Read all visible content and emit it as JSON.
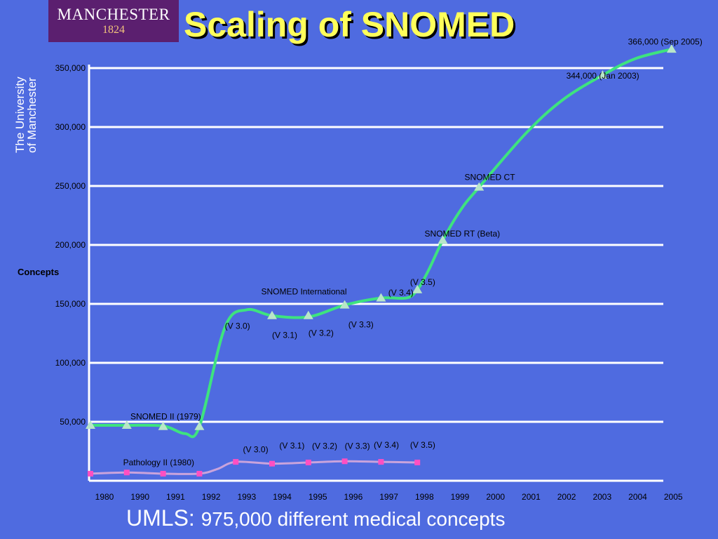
{
  "logo": {
    "name": "MANCHESTER",
    "year": "1824"
  },
  "university": {
    "line1": "The University",
    "line2": "of Manchester"
  },
  "title": "Scaling of SNOMED",
  "footer": {
    "prefix": "UMLS:",
    "text": "975,000 different medical concepts"
  },
  "colors": {
    "background": "#4f6be0",
    "snomed_line": "#3ee37f",
    "snomed_marker": "#b8e6c8",
    "pathology_line": "#c9a3dc",
    "pathology_marker": "#ff4fc2",
    "title": "#ffff5a"
  },
  "chart_data": {
    "type": "line",
    "title": "Scaling of SNOMED",
    "ylabel": "Concepts",
    "xlabel": "",
    "x_ticks": [
      "1980",
      "1990",
      "1991",
      "1992",
      "1993",
      "1994",
      "1995",
      "1996",
      "1997",
      "1998",
      "1999",
      "2000",
      "2001",
      "2002",
      "2003",
      "2004",
      "2005"
    ],
    "y_ticks": [
      "50,000",
      "100,000",
      "150,000",
      "200,000",
      "250,000",
      "300,000",
      "350,000"
    ],
    "y_tick_values": [
      50000,
      100000,
      150000,
      200000,
      250000,
      300000,
      350000
    ],
    "ylim": [
      0,
      355000
    ],
    "grid": true,
    "series": [
      {
        "name": "SNOMED",
        "marker": "triangle",
        "points": [
          {
            "x": 0,
            "y": 47000
          },
          {
            "x": 1,
            "y": 47000
          },
          {
            "x": 2,
            "y": 46000
          },
          {
            "x": 3,
            "y": 46000
          },
          {
            "x": 5,
            "y": 140000
          },
          {
            "x": 6,
            "y": 140000
          },
          {
            "x": 7,
            "y": 149000
          },
          {
            "x": 8,
            "y": 155000
          },
          {
            "x": 9,
            "y": 162000
          },
          {
            "x": 9.7,
            "y": 204000
          },
          {
            "x": 10.7,
            "y": 249000
          },
          {
            "x": 14.1,
            "y": 344000
          },
          {
            "x": 16,
            "y": 366000
          }
        ],
        "curve": [
          [
            0,
            47000
          ],
          [
            1,
            47000
          ],
          [
            2,
            46500
          ],
          [
            2.6,
            40000
          ],
          [
            3,
            46000
          ],
          [
            3.7,
            130000
          ],
          [
            4.3,
            145000
          ],
          [
            5,
            140000
          ],
          [
            6,
            139000
          ],
          [
            7,
            149000
          ],
          [
            8,
            155000
          ],
          [
            8.7,
            155000
          ],
          [
            9,
            162000
          ],
          [
            9.3,
            178000
          ],
          [
            9.7,
            204000
          ],
          [
            10.2,
            230000
          ],
          [
            10.7,
            249000
          ],
          [
            12,
            295000
          ],
          [
            13,
            323000
          ],
          [
            14.1,
            344000
          ],
          [
            15,
            358000
          ],
          [
            16,
            366000
          ]
        ]
      },
      {
        "name": "Pathology",
        "marker": "square",
        "points": [
          {
            "x": 0,
            "y": 6000
          },
          {
            "x": 1,
            "y": 7000
          },
          {
            "x": 2,
            "y": 6000
          },
          {
            "x": 3,
            "y": 6000
          },
          {
            "x": 4,
            "y": 16000
          },
          {
            "x": 5,
            "y": 14500
          },
          {
            "x": 6,
            "y": 15500
          },
          {
            "x": 7,
            "y": 16500
          },
          {
            "x": 8,
            "y": 16000
          },
          {
            "x": 9,
            "y": 15500
          }
        ],
        "curve": [
          [
            0,
            6000
          ],
          [
            1,
            7000
          ],
          [
            2,
            6000
          ],
          [
            3,
            6000
          ],
          [
            3.5,
            10000
          ],
          [
            4,
            16000
          ],
          [
            5,
            14500
          ],
          [
            6,
            15500
          ],
          [
            7,
            16500
          ],
          [
            8,
            16000
          ],
          [
            9,
            15500
          ]
        ]
      }
    ],
    "annotations": [
      {
        "text": "366,000 (Sep 2005)",
        "x": 14.8,
        "y": 370000
      },
      {
        "text": "344,000 (Jan 2003)",
        "x": 13.1,
        "y": 341000
      },
      {
        "text": "SNOMED CT",
        "x": 10.3,
        "y": 255000
      },
      {
        "text": "SNOMED RT (Beta)",
        "x": 9.2,
        "y": 207000
      },
      {
        "text": "(V 3.5)",
        "x": 8.8,
        "y": 166000
      },
      {
        "text": "(V 3.4)",
        "x": 8.2,
        "y": 157000
      },
      {
        "text": "SNOMED International",
        "x": 4.7,
        "y": 158000
      },
      {
        "text": "(V 3.0)",
        "x": 3.7,
        "y": 129000
      },
      {
        "text": "(V 3.1)",
        "x": 5.0,
        "y": 121000
      },
      {
        "text": "(V 3.2)",
        "x": 6.0,
        "y": 123000
      },
      {
        "text": "(V 3.3)",
        "x": 7.1,
        "y": 130000
      },
      {
        "text": "SNOMED II (1979)",
        "x": 1.1,
        "y": 52000
      },
      {
        "text": "(V 3.0)",
        "x": 4.2,
        "y": 24000
      },
      {
        "text": "(V 3.1)",
        "x": 5.2,
        "y": 27500
      },
      {
        "text": "(V 3.2)",
        "x": 6.1,
        "y": 27000
      },
      {
        "text": "(V 3.3)",
        "x": 7.0,
        "y": 27000
      },
      {
        "text": "(V 3.4)",
        "x": 7.8,
        "y": 28000
      },
      {
        "text": "(V 3.5)",
        "x": 8.8,
        "y": 28000
      },
      {
        "text": "Pathology II (1980)",
        "x": 0.9,
        "y": 13000
      }
    ]
  }
}
